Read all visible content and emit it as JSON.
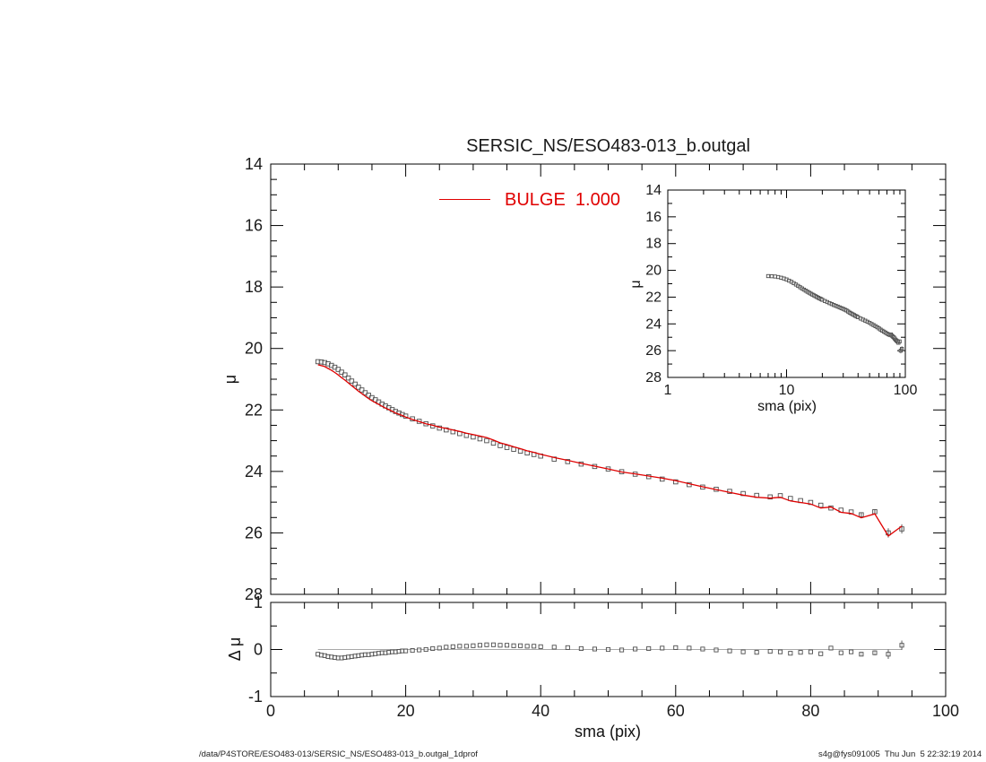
{
  "page": {
    "title": "SERSIC_NS/ESO483-013_b.outgal",
    "footer_left": "/data/P4STORE/ESO483-013/SERSIC_NS/ESO483-013_b.outgal_1dprof",
    "footer_right": "s4g@fys091005  Thu Jun  5 22:32:19 2014"
  },
  "chart_data": {
    "type": "line",
    "title": "SERSIC_NS/ESO483-013_b.outgal",
    "legend": {
      "position": "top-center",
      "entries": [
        {
          "label": "BULGE  1.000",
          "color": "#e00000",
          "style": "line"
        }
      ]
    },
    "colors": {
      "model_line": "#e00000",
      "data_marker": "#4d4d4d",
      "axis": "#000000",
      "zero_line": "#a8a8a8",
      "background": "#ffffff"
    },
    "panels": {
      "main": {
        "xlabel": "",
        "ylabel": "μ",
        "xlim": [
          0,
          100
        ],
        "ylim": [
          14,
          28
        ],
        "y_axis_direction": "inverted",
        "xticks_major": [
          0,
          20,
          40,
          60,
          80,
          100
        ],
        "xtick_minor_step": 5,
        "yticks_major": [
          14,
          16,
          18,
          20,
          22,
          24,
          26,
          28
        ],
        "ytick_minor_step": 0.5,
        "x_tick_labels_shown": false,
        "grid": false,
        "series_shown": [
          "data_squares",
          "bulge_model_line"
        ]
      },
      "inset": {
        "xlabel": "sma (pix)",
        "ylabel": "μ",
        "xscale": "log",
        "xlim": [
          1,
          100
        ],
        "ylim": [
          14,
          28
        ],
        "y_axis_direction": "inverted",
        "xticks_major": [
          1,
          10,
          100
        ],
        "xticks_minor": [
          2,
          3,
          4,
          5,
          6,
          7,
          8,
          9,
          20,
          30,
          40,
          50,
          60,
          70,
          80,
          90
        ],
        "yticks_major": [
          14,
          16,
          18,
          20,
          22,
          24,
          26,
          28
        ],
        "yticks_minor": [
          15,
          17,
          19,
          21,
          23,
          25,
          27
        ],
        "grid": false,
        "series_shown": [
          "data_squares"
        ]
      },
      "residual": {
        "xlabel": "sma (pix)",
        "ylabel": "Δ μ",
        "xlim": [
          0,
          100
        ],
        "ylim": [
          -1,
          1
        ],
        "xticks_major": [
          0,
          20,
          40,
          60,
          80,
          100
        ],
        "xtick_minor_step": 5,
        "yticks_major": [
          1,
          0,
          -1
        ],
        "yticks_minor": [
          -0.5,
          0.5
        ],
        "grid": false,
        "zero_line": true,
        "series_shown": [
          "residual_squares"
        ]
      }
    },
    "series": {
      "sma": [
        7,
        7.5,
        8,
        8.5,
        9,
        9.5,
        10,
        10.5,
        11,
        11.5,
        12,
        12.5,
        13,
        13.5,
        14,
        14.5,
        15,
        15.5,
        16,
        16.5,
        17,
        17.5,
        18,
        18.5,
        19,
        19.5,
        20,
        21,
        22,
        23,
        24,
        25,
        26,
        27,
        28,
        29,
        30,
        31,
        32,
        33,
        34,
        35,
        36,
        37,
        38,
        39,
        40,
        42,
        44,
        46,
        48,
        50,
        52,
        54,
        56,
        58,
        60,
        62,
        64,
        66,
        68,
        70,
        72,
        74,
        75.5,
        77,
        78.5,
        80,
        81.5,
        83,
        84.5,
        86,
        87.5,
        89.5,
        91.5,
        93.5
      ],
      "mu": [
        20.43,
        20.44,
        20.46,
        20.5,
        20.55,
        20.61,
        20.68,
        20.77,
        20.86,
        20.96,
        21.06,
        21.16,
        21.26,
        21.35,
        21.44,
        21.52,
        21.6,
        21.67,
        21.74,
        21.81,
        21.87,
        21.93,
        21.99,
        22.05,
        22.1,
        22.15,
        22.2,
        22.29,
        22.37,
        22.45,
        22.52,
        22.59,
        22.65,
        22.71,
        22.77,
        22.83,
        22.88,
        22.94,
        23.0,
        23.08,
        23.16,
        23.22,
        23.28,
        23.34,
        23.4,
        23.45,
        23.5,
        23.6,
        23.68,
        23.76,
        23.84,
        23.92,
        24.01,
        24.09,
        24.17,
        24.25,
        24.34,
        24.43,
        24.51,
        24.58,
        24.65,
        24.72,
        24.78,
        24.83,
        24.79,
        24.88,
        24.95,
        25.01,
        25.1,
        25.19,
        25.26,
        25.32,
        25.41,
        25.31,
        26.0,
        25.87
      ],
      "dmu": [
        -0.1,
        -0.12,
        -0.13,
        -0.15,
        -0.16,
        -0.17,
        -0.18,
        -0.18,
        -0.17,
        -0.16,
        -0.15,
        -0.14,
        -0.13,
        -0.12,
        -0.11,
        -0.11,
        -0.1,
        -0.09,
        -0.08,
        -0.07,
        -0.07,
        -0.06,
        -0.05,
        -0.05,
        -0.04,
        -0.03,
        -0.03,
        -0.02,
        -0.01,
        0.0,
        0.02,
        0.03,
        0.05,
        0.06,
        0.07,
        0.07,
        0.08,
        0.09,
        0.1,
        0.1,
        0.09,
        0.09,
        0.08,
        0.08,
        0.07,
        0.07,
        0.06,
        0.05,
        0.04,
        0.02,
        0.01,
        0.0,
        -0.01,
        0.01,
        0.02,
        0.03,
        0.04,
        0.03,
        0.01,
        -0.01,
        -0.03,
        -0.05,
        -0.06,
        -0.04,
        -0.05,
        -0.08,
        -0.06,
        -0.05,
        -0.09,
        0.03,
        -0.07,
        -0.05,
        -0.1,
        -0.07,
        -0.1,
        0.09
      ],
      "err": [
        0,
        0,
        0,
        0,
        0,
        0,
        0,
        0,
        0,
        0,
        0,
        0,
        0,
        0,
        0,
        0,
        0,
        0,
        0,
        0,
        0,
        0,
        0,
        0,
        0,
        0,
        0,
        0,
        0,
        0,
        0,
        0,
        0,
        0,
        0,
        0,
        0,
        0,
        0,
        0,
        0,
        0,
        0,
        0,
        0,
        0,
        0,
        0,
        0,
        0,
        0,
        0,
        0,
        0,
        0,
        0,
        0,
        0,
        0,
        0,
        0,
        0,
        0,
        0,
        0,
        0,
        0,
        0,
        0,
        0,
        0,
        0,
        0.04,
        0.05,
        0.1,
        0.1
      ],
      "model_rule": "model_mu = mu - dmu"
    }
  }
}
